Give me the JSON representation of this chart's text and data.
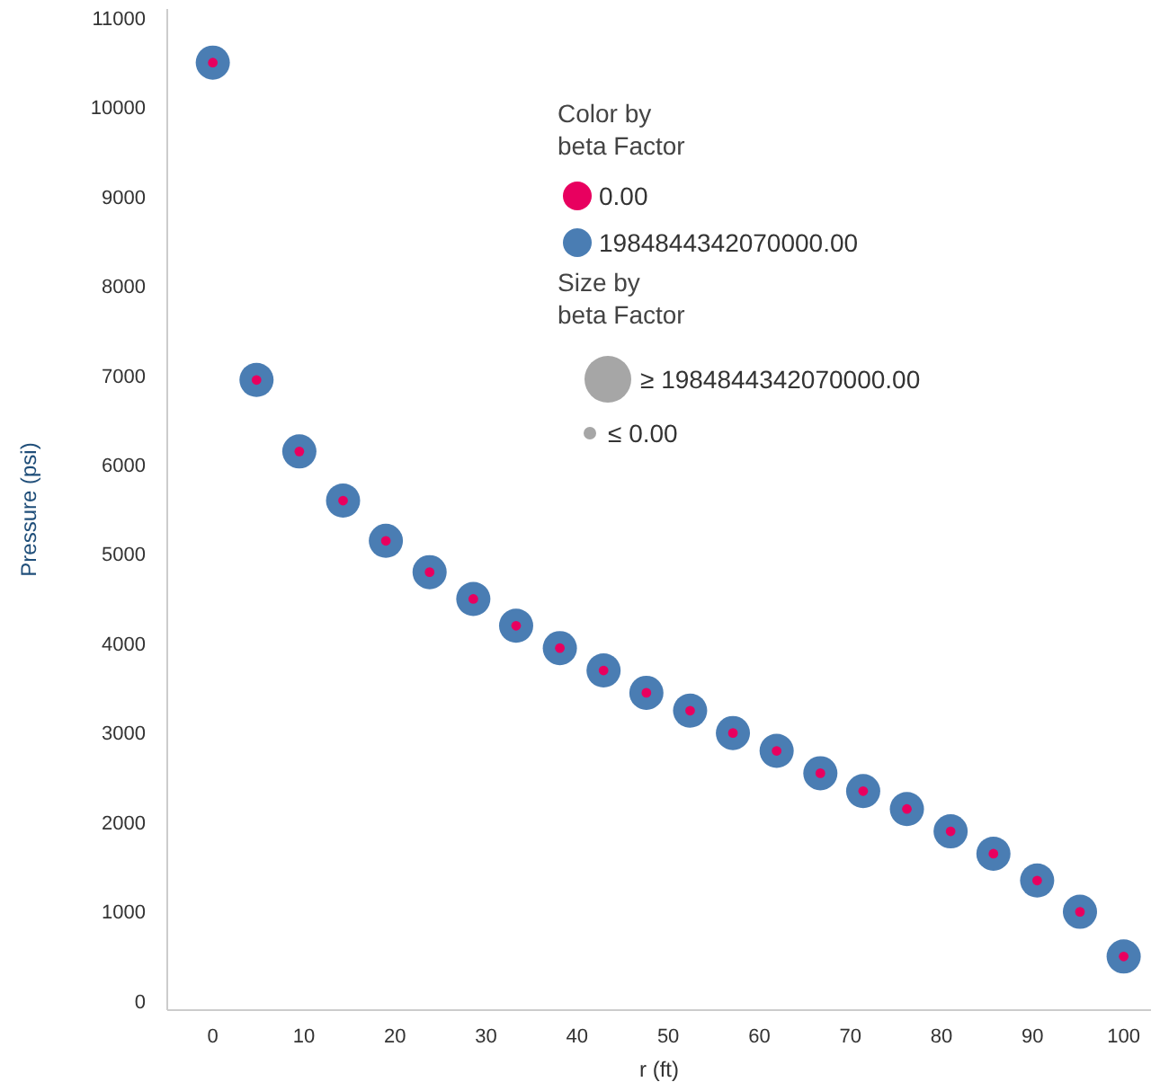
{
  "chart_data": {
    "type": "bubble",
    "xlabel": "r (ft)",
    "ylabel": "Pressure (psi)",
    "legend_title": "Color by\nbeta Factor",
    "legend": "top right",
    "x": [
      0,
      4.8,
      9.5,
      14.3,
      19.0,
      23.8,
      28.6,
      33.3,
      38.1,
      42.9,
      47.6,
      52.4,
      57.1,
      61.9,
      66.7,
      71.4,
      76.2,
      81.0,
      85.7,
      90.5,
      95.2,
      100
    ],
    "xlim": [
      -5,
      103
    ],
    "xticks": [
      0,
      10,
      20,
      30,
      40,
      50,
      60,
      70,
      80,
      90,
      100
    ],
    "ylim": [
      -100,
      11100
    ],
    "yticks": [
      0,
      1000,
      2000,
      3000,
      4000,
      5000,
      6000,
      7000,
      8000,
      9000,
      10000,
      11000
    ],
    "grid": false,
    "series": [
      {
        "name": "0.00",
        "color": "#e8005f",
        "values": [
          10500,
          6950,
          6150,
          5600,
          5150,
          4800,
          4500,
          4200,
          3950,
          3700,
          3450,
          3250,
          3000,
          2800,
          2550,
          2350,
          2150,
          1900,
          1650,
          1350,
          1000,
          500
        ],
        "sizes": [
          0.08,
          0.08,
          0.08,
          0.08,
          0.08,
          0.08,
          0.08,
          0.08,
          0.08,
          0.08,
          0.08,
          0.08,
          0.08,
          0.08,
          0.08,
          0.08,
          0.08,
          0.08,
          0.08,
          0.08,
          0.08,
          0.08
        ]
      },
      {
        "name": "1984844342070000.00",
        "color": "#4a7db3",
        "values": [
          10500,
          6950,
          6150,
          5600,
          5150,
          4800,
          4500,
          4200,
          3950,
          3700,
          3450,
          3250,
          3000,
          2800,
          2550,
          2350,
          2150,
          1900,
          1650,
          1350,
          1000,
          500
        ],
        "sizes": [
          1,
          1,
          1,
          1,
          1,
          1,
          1,
          1,
          1,
          1,
          1,
          1,
          1,
          1,
          1,
          1,
          1,
          1,
          1,
          1,
          1,
          1
        ]
      }
    ],
    "annotations": [
      "Size by\nbeta Factor",
      "≥ 1984844342070000.00",
      "≤ 0.00"
    ]
  }
}
